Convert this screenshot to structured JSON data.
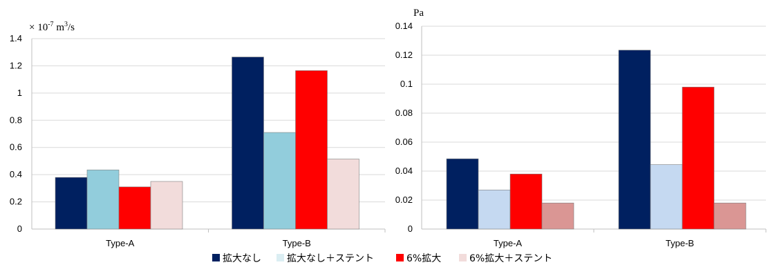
{
  "chart_data": [
    {
      "type": "bar",
      "unit_label_prefix": "× 10",
      "unit_label_exp": "-7",
      "unit_label_mid": " m",
      "unit_label_exp2": "3",
      "unit_label_suffix": "/s",
      "categories": [
        "Type-A",
        "Type-B"
      ],
      "ylim": [
        0,
        1.4
      ],
      "yticks": [
        "0",
        "0.2",
        "0.4",
        "0.6",
        "0.8",
        "1",
        "1.2",
        "1.4"
      ],
      "grid": true,
      "series": [
        {
          "name": "拡大なし",
          "color": "#002060",
          "values": [
            0.38,
            1.265
          ]
        },
        {
          "name": "拡大なし＋ステント",
          "color": "#92cddc",
          "values": [
            0.435,
            0.71
          ]
        },
        {
          "name": "6%拡大",
          "color": "#ff0000",
          "values": [
            0.31,
            1.165
          ]
        },
        {
          "name": "6%拡大＋ステント",
          "color": "#f2dcdb",
          "values": [
            0.35,
            0.515
          ]
        }
      ]
    },
    {
      "type": "bar",
      "unit_label": "Pa",
      "categories": [
        "Type-A",
        "Type-B"
      ],
      "ylim": [
        0,
        0.14
      ],
      "yticks": [
        "0",
        "0.02",
        "0.04",
        "0.06",
        "0.08",
        "0.1",
        "0.12",
        "0.14"
      ],
      "grid": true,
      "series": [
        {
          "name": "拡大なし",
          "color": "#002060",
          "values": [
            0.0485,
            0.1235
          ]
        },
        {
          "name": "拡大なし＋ステント",
          "color": "#c5d9f1",
          "values": [
            0.027,
            0.0445
          ]
        },
        {
          "name": "6%拡大",
          "color": "#ff0000",
          "values": [
            0.038,
            0.098
          ]
        },
        {
          "name": "6%拡大＋ステント",
          "color": "#da9694",
          "values": [
            0.018,
            0.018
          ]
        }
      ]
    }
  ],
  "legend": {
    "position": "bottom",
    "items": [
      {
        "label": "拡大なし",
        "color": "#002060"
      },
      {
        "label": "拡大なし＋ステント",
        "color": "#dbeef3"
      },
      {
        "label": "6%拡大",
        "color": "#ff0000"
      },
      {
        "label": "6%拡大＋ステント",
        "color": "#f2dcdb"
      }
    ]
  }
}
